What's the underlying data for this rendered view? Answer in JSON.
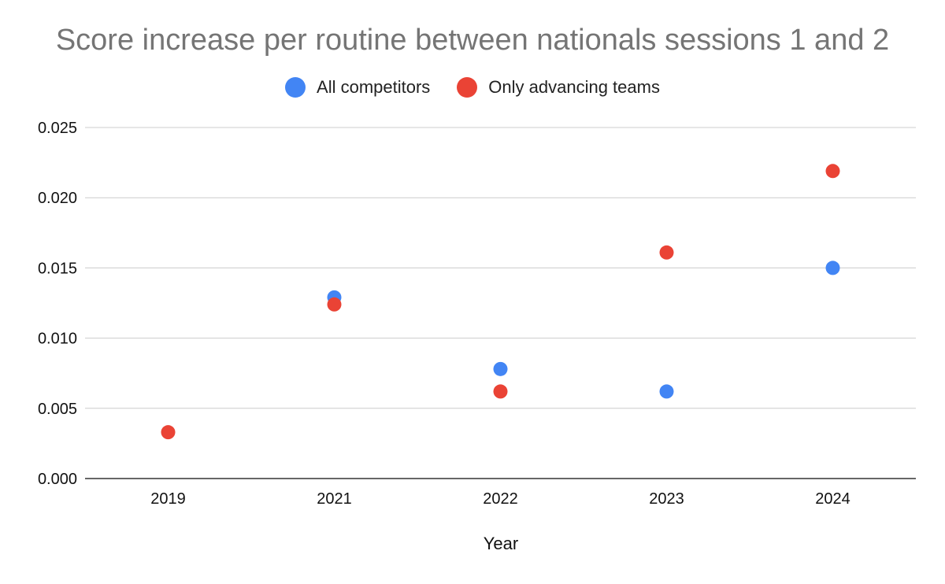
{
  "chart_data": {
    "type": "scatter",
    "title": "Score increase per routine between nationals sessions 1 and 2",
    "xlabel": "Year",
    "ylabel": "",
    "categories": [
      "2019",
      "2021",
      "2022",
      "2023",
      "2024"
    ],
    "ylim": [
      0,
      0.025
    ],
    "yticks": [
      "0.000",
      "0.005",
      "0.010",
      "0.015",
      "0.020",
      "0.025"
    ],
    "grid": true,
    "legend_position": "top",
    "series": [
      {
        "name": "All competitors",
        "color": "#4285f4",
        "values": [
          null,
          0.0129,
          0.0078,
          0.0062,
          0.015
        ]
      },
      {
        "name": "Only advancing teams",
        "color": "#ea4335",
        "values": [
          0.0033,
          0.0124,
          0.0062,
          0.0161,
          0.0219
        ]
      }
    ]
  }
}
